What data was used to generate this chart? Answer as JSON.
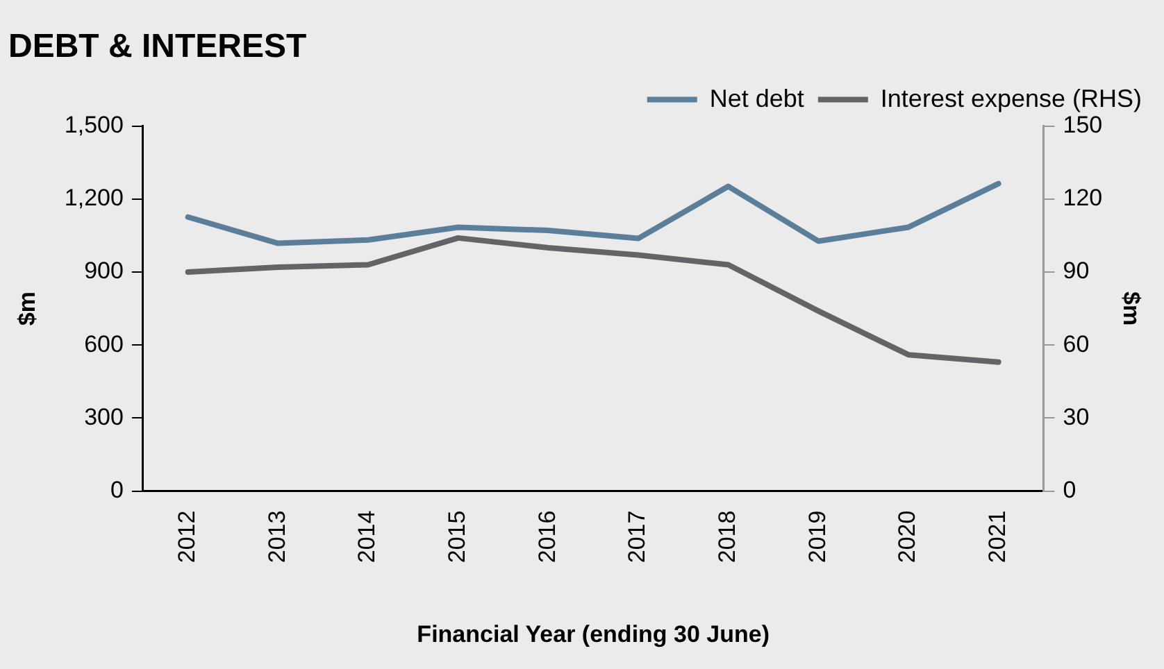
{
  "chart_data": {
    "type": "line",
    "title": "DEBT & INTEREST",
    "xlabel": "Financial Year (ending 30 June)",
    "ylabel": "$m",
    "y2label": "$m",
    "categories": [
      "2012",
      "2013",
      "2014",
      "2015",
      "2016",
      "2017",
      "2018",
      "2019",
      "2020",
      "2021"
    ],
    "series": [
      {
        "name": "Net debt",
        "color": "#5b7f9b",
        "values": [
          1126,
          1018,
          1032,
          1084,
          1071,
          1038,
          1252,
          1027,
          1084,
          1263
        ]
      },
      {
        "name": "Interest expense (RHS)",
        "color": "#636368",
        "axis": "y2",
        "values": [
          90,
          92,
          93,
          104,
          100,
          97,
          93,
          74,
          56,
          53
        ]
      }
    ],
    "ylim": [
      0,
      1500
    ],
    "yticks": [
      {
        "value": 0,
        "label": "0"
      },
      {
        "value": 300,
        "label": "300"
      },
      {
        "value": 600,
        "label": "600"
      },
      {
        "value": 900,
        "label": "900"
      },
      {
        "value": 1200,
        "label": "1,200"
      },
      {
        "value": 1500,
        "label": "1,500"
      }
    ],
    "y2lim": [
      0,
      150
    ],
    "y2ticks": [
      0,
      30,
      60,
      90,
      120,
      150
    ],
    "grid": false,
    "legend": "top right",
    "marker": "none",
    "line_style": "solid"
  }
}
